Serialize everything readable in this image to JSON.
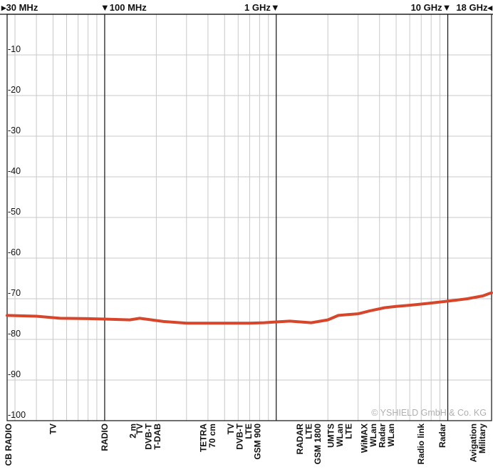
{
  "chart_data": {
    "type": "line",
    "x_scale": "log",
    "x_unit": "MHz",
    "xlim": [
      27,
      18000
    ],
    "ylim": [
      -100,
      0
    ],
    "y_ticks": [
      -10,
      -20,
      -30,
      -40,
      -50,
      -60,
      -70,
      -80,
      -90,
      -100
    ],
    "grid": true,
    "x_grid_minor_mhz": [
      27,
      30,
      40,
      50,
      60,
      70,
      80,
      90,
      200,
      300,
      400,
      500,
      600,
      700,
      800,
      900,
      2000,
      3000,
      4000,
      5000,
      6000,
      7000,
      8000,
      9000
    ],
    "x_grid_major_mhz": [
      100,
      1000,
      10000
    ],
    "freq_markers": [
      {
        "label": "30 MHz",
        "x": 30,
        "arrow": "right"
      },
      {
        "label": "100 MHz",
        "x": 100,
        "arrow": "down"
      },
      {
        "label": "1 GHz",
        "x": 1000,
        "arrow": "down"
      },
      {
        "label": "10 GHz",
        "x": 10000,
        "arrow": "down"
      },
      {
        "label": "18 GHz",
        "x": 18000,
        "arrow": "left"
      }
    ],
    "series": [
      {
        "color": "#d7452a",
        "x": [
          27,
          40,
          55,
          80,
          100,
          140,
          160,
          220,
          300,
          400,
          550,
          700,
          850,
          1000,
          1200,
          1600,
          2000,
          2300,
          2600,
          3000,
          3500,
          4300,
          5000,
          6000,
          7500,
          10000,
          13000,
          16000,
          18000
        ],
        "y": [
          -74.1,
          -74.3,
          -74.8,
          -74.9,
          -75.0,
          -75.2,
          -74.8,
          -75.6,
          -76.0,
          -76.0,
          -76.0,
          -76.0,
          -75.9,
          -75.7,
          -75.5,
          -75.9,
          -75.2,
          -74.1,
          -73.9,
          -73.7,
          -73.0,
          -72.2,
          -71.9,
          -71.6,
          -71.2,
          -70.6,
          -70.0,
          -69.3,
          -68.5
        ]
      }
    ],
    "band_labels": [
      {
        "x": 27.5,
        "lines": [
          "CB RADIO"
        ]
      },
      {
        "x": 50,
        "lines": [
          "TV"
        ]
      },
      {
        "x": 100,
        "lines": [
          "RADIO"
        ]
      },
      {
        "x": 146,
        "lines": [
          "2 m"
        ]
      },
      {
        "x": 180,
        "lines": [
          "TV",
          "DVB-T",
          "T-DAB"
        ]
      },
      {
        "x": 400,
        "lines": [
          "TETRA",
          "70 cm"
        ]
      },
      {
        "x": 650,
        "lines": [
          "TV",
          "DVB-T",
          "LTE",
          "GSM 900"
        ]
      },
      {
        "x": 1550,
        "lines": [
          "RADAR",
          "LTE",
          "GSM 1800"
        ]
      },
      {
        "x": 2350,
        "lines": [
          "UMTS",
          "WLan",
          "LTE"
        ]
      },
      {
        "x": 3900,
        "lines": [
          "WiMAX",
          "WLan",
          "Radar",
          "WLan"
        ]
      },
      {
        "x": 7000,
        "lines": [
          "Radio link"
        ]
      },
      {
        "x": 9300,
        "lines": [
          "Radar"
        ]
      },
      {
        "x": 15000,
        "lines": [
          "Avigation",
          "Military"
        ]
      }
    ],
    "watermark": "© YSHIELD GmbH & Co. KG"
  }
}
